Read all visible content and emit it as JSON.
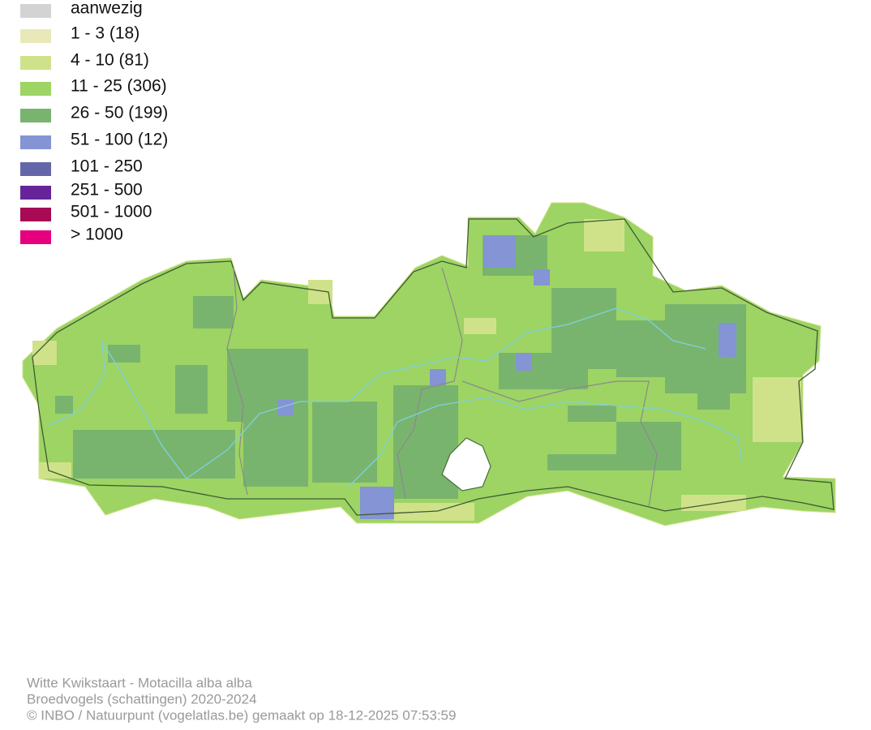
{
  "legend": {
    "items": [
      {
        "label": "aanwezig",
        "color": "#d3d3d3"
      },
      {
        "label": "1 - 3 (18)",
        "color": "#e8e8b9"
      },
      {
        "label": "4 - 10 (81)",
        "color": "#cfe28a"
      },
      {
        "label": "11 - 25 (306)",
        "color": "#9dd464"
      },
      {
        "label": "26 - 50 (199)",
        "color": "#79b46e"
      },
      {
        "label": "51 - 100 (12)",
        "color": "#8494d4"
      },
      {
        "label": "101 - 250",
        "color": "#6366a8"
      },
      {
        "label": "251 - 500",
        "color": "#66249a"
      },
      {
        "label": "501 - 1000",
        "color": "#a80a55"
      },
      {
        "label": "> 1000",
        "color": "#e6007e"
      }
    ]
  },
  "footer": {
    "species": "Witte Kwikstaart - Motacilla alba alba",
    "dataset": "Broedvogels (schattingen) 2020-2024",
    "credit": "© INBO / Natuurpunt (vogelatlas.be) gemaakt op 18-12-2025 07:53:59"
  }
}
